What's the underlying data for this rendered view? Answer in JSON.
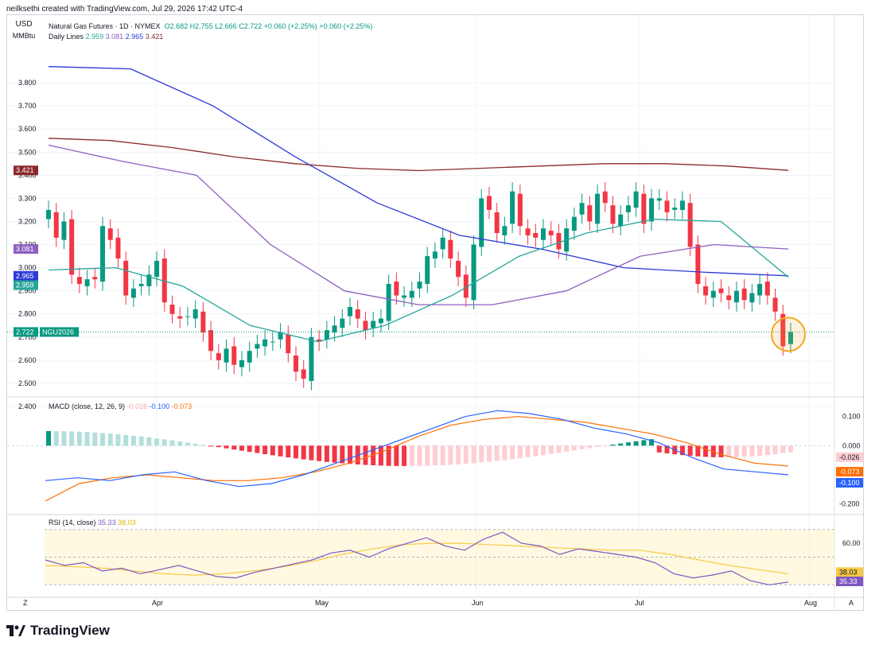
{
  "attribution": "neilksethi created with TradingView.com, Jul 29, 2026 17:42 UTC-4",
  "legend": {
    "title": "Natural Gas Futures · 1D · NYMEX",
    "open": "O2.682",
    "high": "H2.755",
    "low": "L2.666",
    "close": "C2.722",
    "change": "+0.060 (+2.25%)",
    "change2": "+0.060 (+2.25%)",
    "lines_label": "Daily Lines",
    "line_values": [
      "2.959",
      "3.081",
      "2.965",
      "3.421"
    ]
  },
  "currency": "USD",
  "unit": "MMBtu",
  "price_tags": {
    "current": "2.722",
    "current_symbol": "NGU2026",
    "ma_brown": "3.421",
    "ma_purple": "3.081",
    "ma_blue": "2.965",
    "ma_teal": "2.959"
  },
  "macd_legend": {
    "label": "MACD (close, 12, 26, 9)",
    "hist": "-0.026",
    "macd": "-0.100",
    "signal": "-0.073"
  },
  "macd_axis": [
    "0.100",
    "0.000",
    "-0.200"
  ],
  "macd_tags": {
    "hist": "-0.026",
    "signal": "-0.073",
    "macd": "-0.100"
  },
  "rsi_legend": {
    "label": "RSI (14, close)",
    "rsi": "35.33",
    "ma": "38.03"
  },
  "rsi_axis": [
    "60.00"
  ],
  "rsi_tags": {
    "ma": "38.03",
    "rsi": "35.33"
  },
  "time_labels": [
    "Apr",
    "May",
    "Jun",
    "Jul",
    "Aug"
  ],
  "corner_left": "Z",
  "corner_right": "A",
  "brand": "TradingView",
  "colors": {
    "up": "#089981",
    "down": "#f23645",
    "ma_blue": "#2c3ad6",
    "ma_brown": "#8b2a2a",
    "ma_purple": "#8e5fc1",
    "ma_teal": "#26a69a",
    "macd_line": "#2962ff",
    "signal_line": "#ff6d00",
    "rsi_line": "#7e57c2",
    "rsi_ma": "#f7c948",
    "highlight": "#f5a623"
  },
  "chart_data": {
    "type": "candlestick",
    "title": "Natural Gas Futures · 1D · NYMEX",
    "ylim": [
      2.4,
      3.9
    ],
    "y_ticks": [
      "3.800",
      "3.700",
      "3.600",
      "3.500",
      "3.400",
      "3.300",
      "3.200",
      "3.100",
      "3.000",
      "2.900",
      "2.800",
      "2.700",
      "2.600",
      "2.500",
      "2.400"
    ],
    "closes": [
      3.25,
      3.13,
      3.2,
      2.97,
      2.93,
      2.95,
      2.95,
      3.18,
      3.12,
      3.04,
      2.88,
      2.91,
      2.93,
      2.97,
      3.03,
      2.85,
      2.8,
      2.78,
      2.79,
      2.82,
      2.72,
      2.64,
      2.6,
      2.65,
      2.58,
      2.6,
      2.64,
      2.67,
      2.69,
      2.68,
      2.72,
      2.63,
      2.55,
      2.52,
      2.7,
      2.68,
      2.73,
      2.75,
      2.78,
      2.83,
      2.78,
      2.73,
      2.77,
      2.78,
      2.93,
      2.88,
      2.88,
      2.9,
      2.94,
      3.05,
      3.07,
      3.13,
      3.04,
      2.96,
      2.87,
      3.1,
      3.3,
      3.25,
      3.15,
      3.18,
      3.33,
      3.18,
      3.14,
      3.13,
      3.17,
      3.14,
      3.08,
      3.17,
      3.22,
      3.28,
      3.2,
      3.32,
      3.28,
      3.19,
      3.23,
      3.27,
      3.33,
      3.19,
      3.3,
      3.3,
      3.24,
      3.26,
      3.29,
      3.09,
      2.93,
      2.88,
      2.9,
      2.89,
      2.86,
      2.9,
      2.86,
      2.89,
      2.93,
      2.88,
      2.81,
      2.66,
      2.722
    ],
    "ma_brown": [
      3.56,
      3.55,
      3.52,
      3.48,
      3.45,
      3.43,
      3.42,
      3.43,
      3.44,
      3.45,
      3.45,
      3.44,
      3.421
    ],
    "ma_blue": [
      3.87,
      3.86,
      3.7,
      3.48,
      3.28,
      3.14,
      3.08,
      3.0,
      2.98,
      2.965
    ],
    "ma_purple": [
      3.53,
      3.46,
      3.4,
      3.1,
      2.9,
      2.84,
      2.84,
      2.9,
      3.05,
      3.1,
      3.081
    ],
    "ma_teal": [
      2.99,
      3.0,
      2.92,
      2.75,
      2.68,
      2.75,
      2.88,
      3.05,
      3.15,
      3.21,
      3.2,
      2.959
    ],
    "macd": {
      "values": [
        "-0.026",
        "-0.100",
        "-0.073"
      ]
    },
    "rsi": {
      "values": [
        "35.33",
        "38.03"
      ]
    }
  }
}
